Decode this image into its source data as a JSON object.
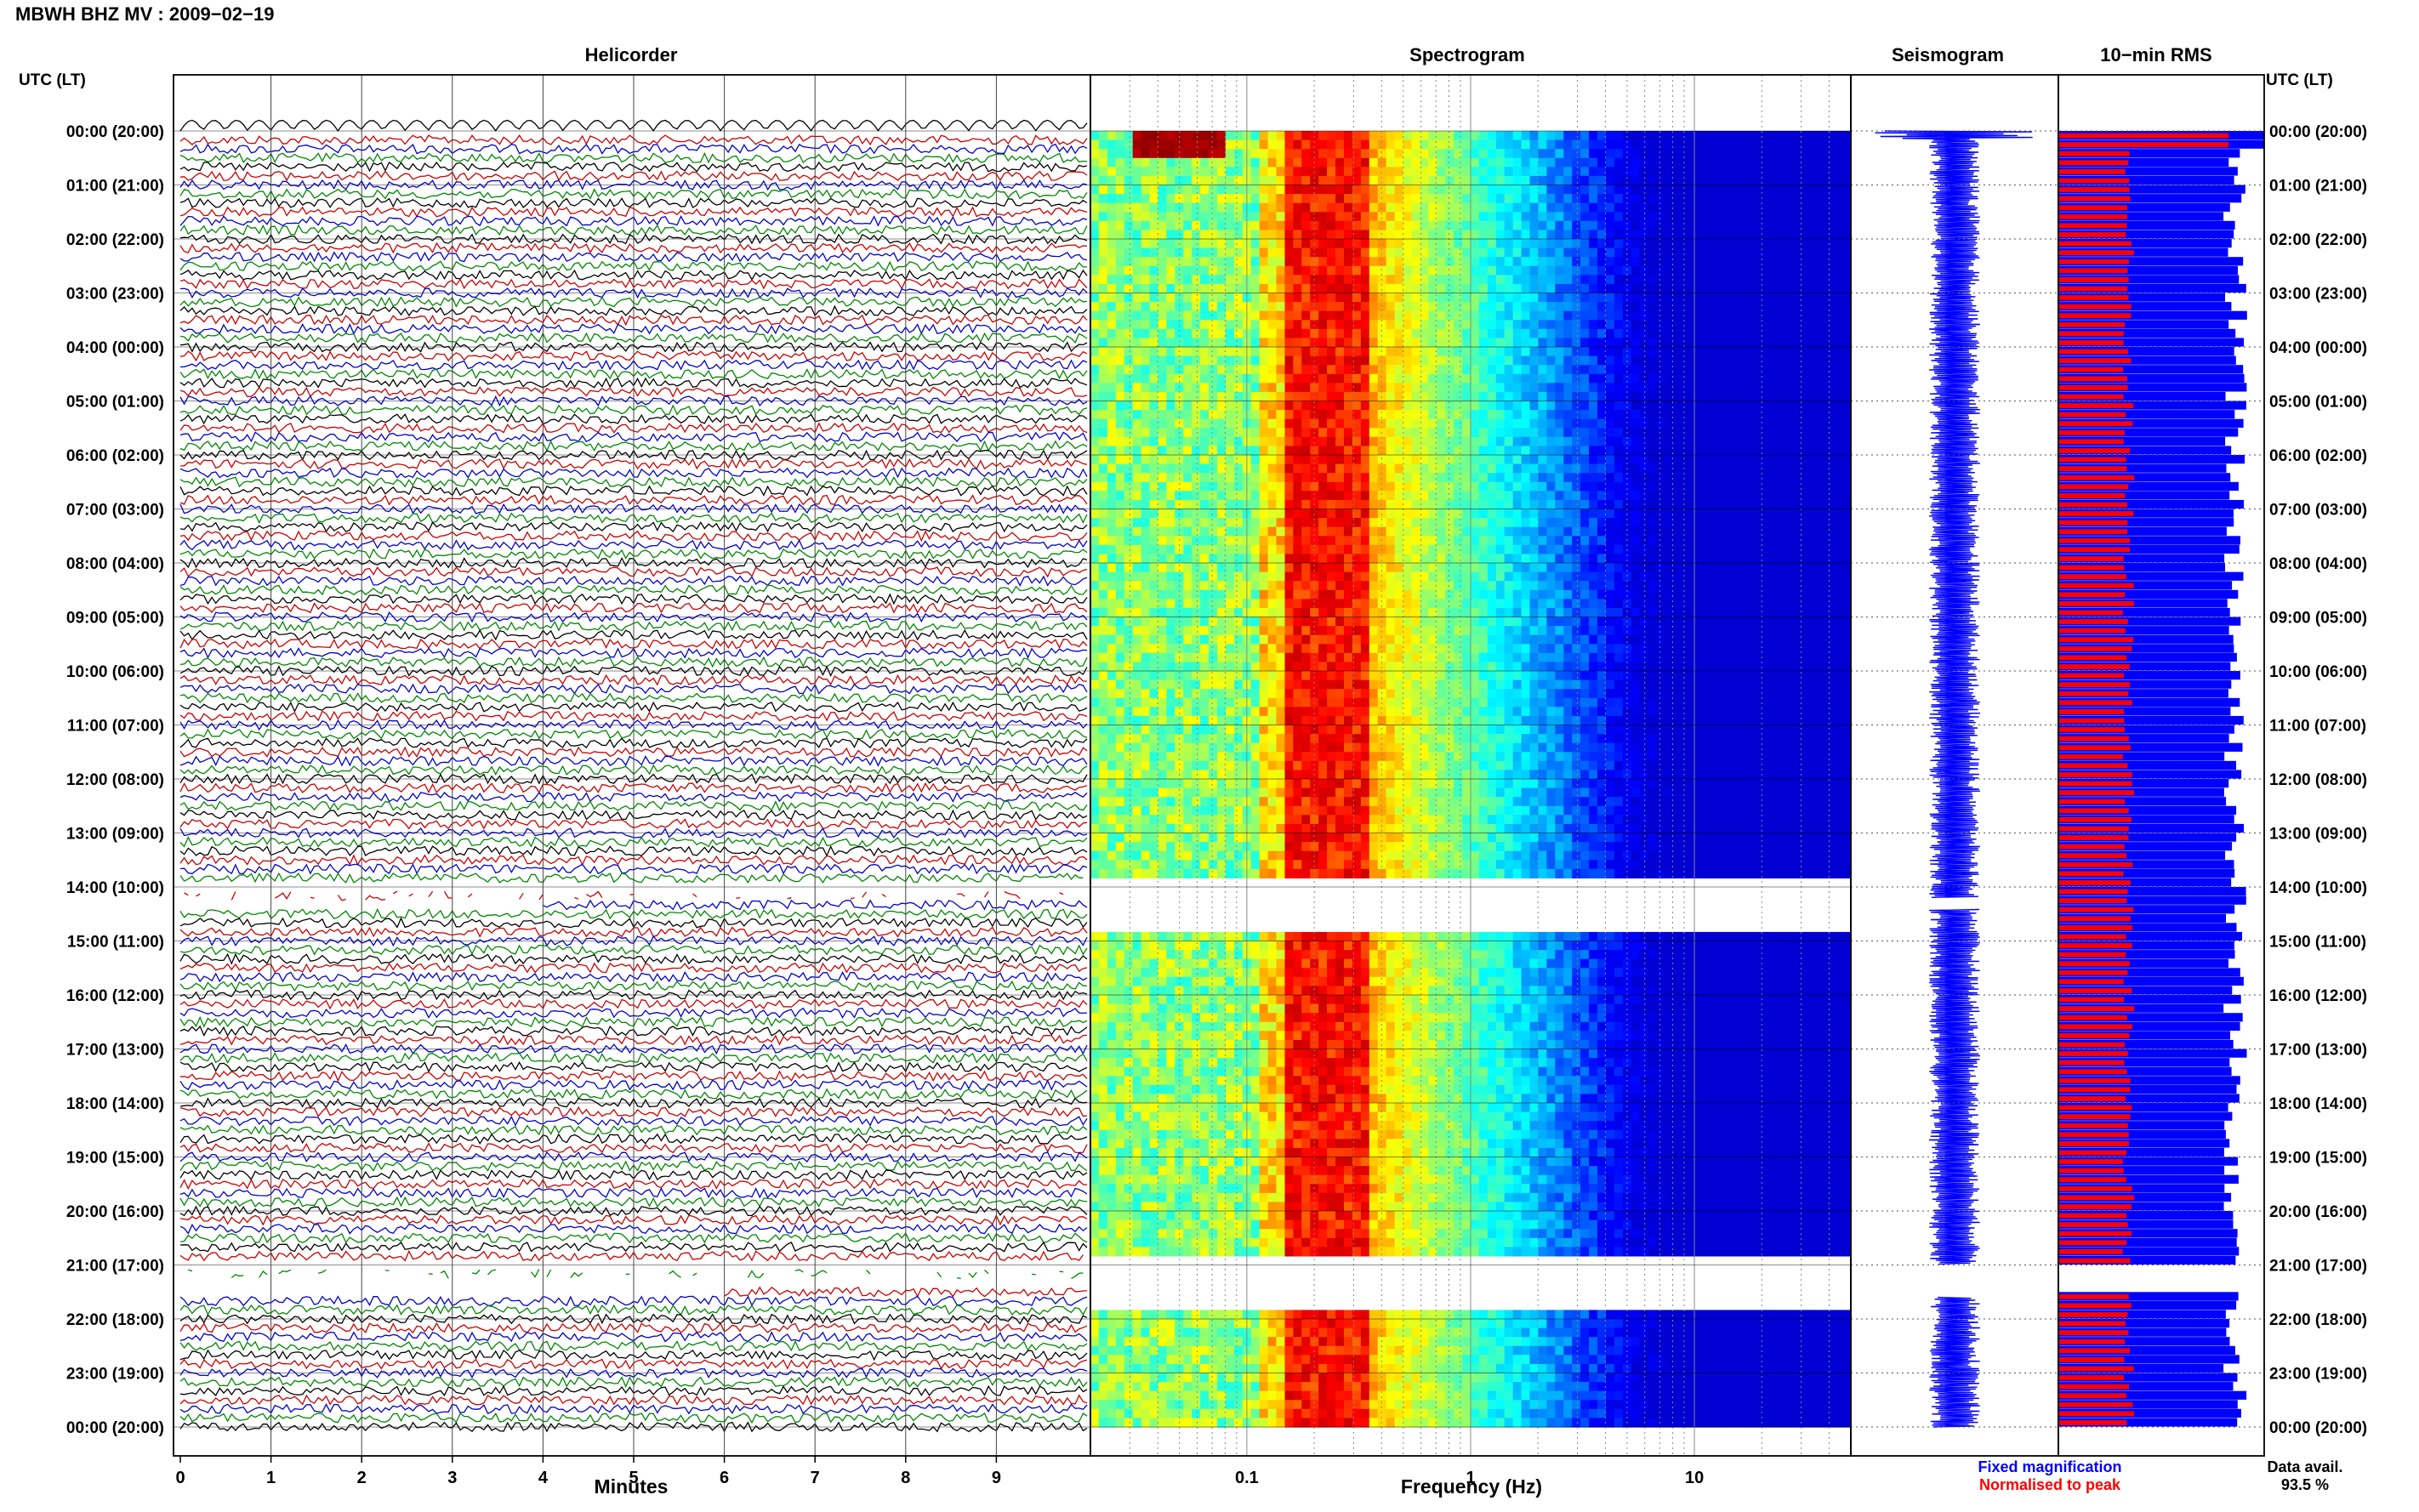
{
  "header": {
    "title": "MBWH BHZ MV : 2009−02−19"
  },
  "labels": {
    "utc_left": "UTC (LT)",
    "utc_right": "UTC (LT)",
    "fixed_magnification": "Fixed magnification",
    "normalised_to_peak": "Normalised to peak",
    "data_avail_label": "Data avail.",
    "data_avail_value": "93.5 %"
  },
  "colors": {
    "trace_cycle": [
      "#000000",
      "#cc0000",
      "#0000cc",
      "#008800"
    ],
    "fixed_magnification": "#0000ff",
    "normalised_to_peak": "#ff0000",
    "spectrogram_colormap": [
      "#00008f",
      "#0000ff",
      "#00ffff",
      "#ffff00",
      "#ff0000",
      "#800000"
    ]
  },
  "chart_data": [
    {
      "type": "line",
      "panel": "helicorder",
      "title": "Helicorder",
      "xlabel": "Minutes",
      "xlim": [
        0,
        10
      ],
      "x_ticks": [
        "0",
        "1",
        "2",
        "3",
        "4",
        "5",
        "6",
        "7",
        "8",
        "9"
      ],
      "y_ticks": [
        "00:00 (20:00)",
        "01:00 (21:00)",
        "02:00 (22:00)",
        "03:00 (23:00)",
        "04:00 (00:00)",
        "05:00 (01:00)",
        "06:00 (02:00)",
        "07:00 (03:00)",
        "08:00 (04:00)",
        "09:00 (05:00)",
        "10:00 (06:00)",
        "11:00 (07:00)",
        "12:00 (08:00)",
        "13:00 (09:00)",
        "14:00 (10:00)",
        "15:00 (11:00)",
        "16:00 (12:00)",
        "17:00 (13:00)",
        "18:00 (14:00)",
        "19:00 (15:00)",
        "20:00 (16:00)",
        "21:00 (17:00)",
        "22:00 (18:00)",
        "23:00 (19:00)",
        "00:00 (20:00)"
      ],
      "traces_per_hour": 6,
      "data_gaps_hours": [
        [
          14.0,
          14.4
        ],
        [
          21.0,
          21.6
        ]
      ]
    },
    {
      "type": "heatmap",
      "panel": "spectrogram",
      "title": "Spectrogram",
      "xlabel": "Frequency (Hz)",
      "x_scale": "log",
      "xlim": [
        0.02,
        50
      ],
      "x_ticks": [
        "0.1",
        "1",
        "10"
      ],
      "dominant_band_hz": [
        0.15,
        0.35
      ],
      "data_gaps_hours": [
        [
          13.85,
          14.85
        ],
        [
          20.9,
          21.75
        ]
      ]
    },
    {
      "type": "line",
      "panel": "seismogram",
      "title": "Seismogram",
      "data_gaps_hours": [
        [
          14.2,
          14.4
        ],
        [
          21.0,
          21.6
        ]
      ]
    },
    {
      "type": "bar",
      "panel": "rms",
      "title": "10−min RMS",
      "orientation": "horizontal",
      "bins_per_hour": 6,
      "series": [
        {
          "name": "Fixed magnification",
          "color": "#0000ff",
          "typical_fraction": 0.86
        },
        {
          "name": "Normalised to peak",
          "color": "#ff0000",
          "typical_fraction": 0.34
        }
      ]
    }
  ]
}
